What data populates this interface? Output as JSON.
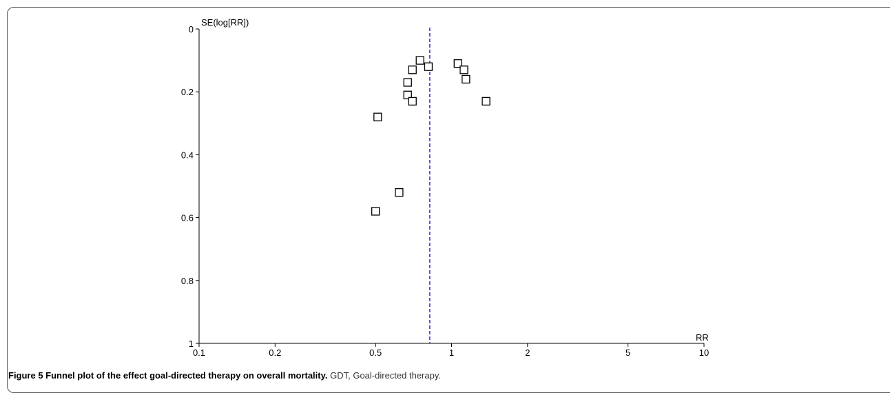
{
  "chart_data": {
    "type": "scatter",
    "subtype": "funnel",
    "x_axis": {
      "label": "RR",
      "scale": "log",
      "range": [
        0.1,
        10
      ],
      "ticks": [
        "0.1",
        "0.2",
        "0.5",
        "1",
        "2",
        "5",
        "10"
      ]
    },
    "y_axis": {
      "label": "SE(log[RR])",
      "reversed": true,
      "range": [
        0,
        1
      ],
      "ticks": [
        "0",
        "0.2",
        "0.4",
        "0.6",
        "0.8",
        "1"
      ]
    },
    "grid": false,
    "marker": "open-square",
    "reference_line": {
      "rr": 0.82,
      "style": "dashed",
      "color": "#3030c8"
    },
    "points": [
      {
        "rr": 0.75,
        "se": 0.1
      },
      {
        "rr": 0.81,
        "se": 0.12
      },
      {
        "rr": 1.06,
        "se": 0.11
      },
      {
        "rr": 0.7,
        "se": 0.13
      },
      {
        "rr": 1.12,
        "se": 0.13
      },
      {
        "rr": 0.67,
        "se": 0.17
      },
      {
        "rr": 1.14,
        "se": 0.16
      },
      {
        "rr": 0.67,
        "se": 0.21
      },
      {
        "rr": 0.7,
        "se": 0.23
      },
      {
        "rr": 1.37,
        "se": 0.23
      },
      {
        "rr": 0.51,
        "se": 0.28
      },
      {
        "rr": 0.62,
        "se": 0.52
      },
      {
        "rr": 0.5,
        "se": 0.58
      }
    ]
  },
  "caption": {
    "bold": "Figure 5 Funnel plot of the effect goal-directed therapy on overall mortality.",
    "rest": " GDT, Goal-directed therapy."
  }
}
